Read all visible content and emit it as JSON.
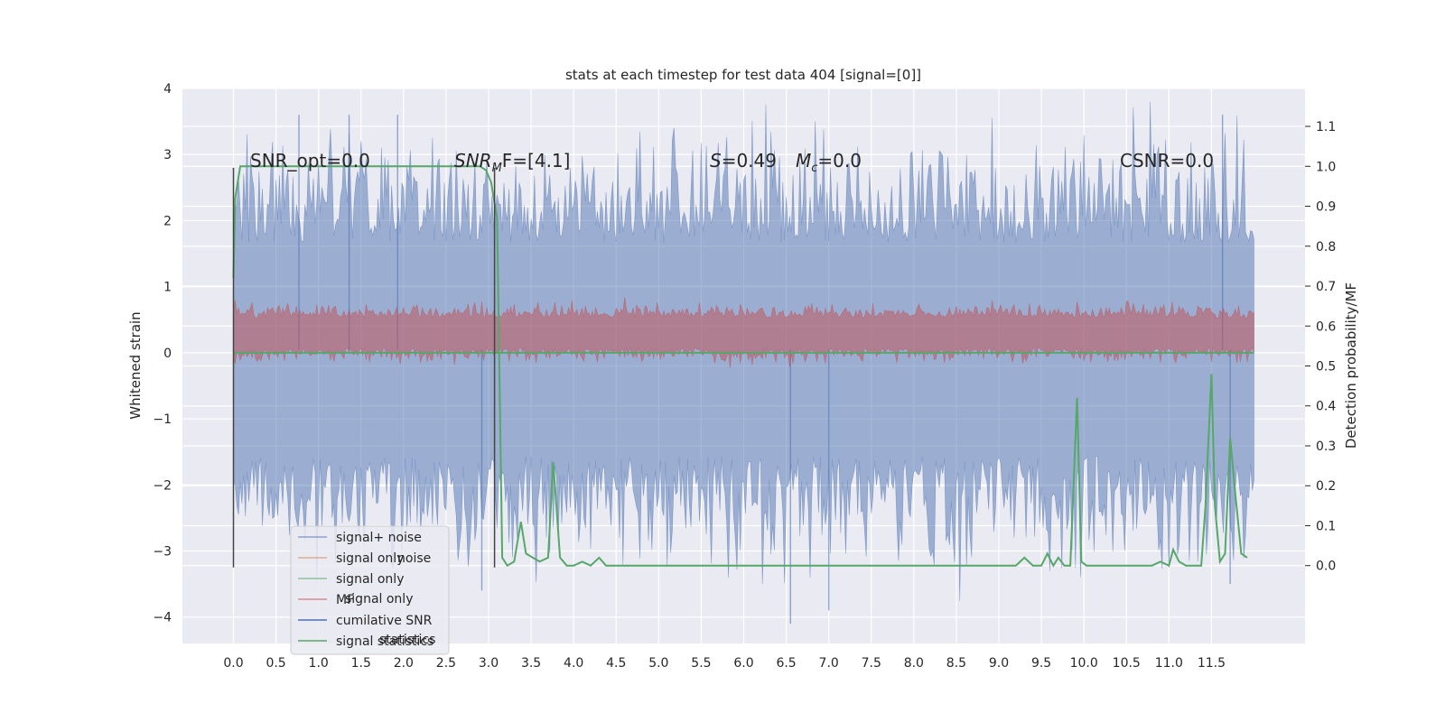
{
  "chart_data": {
    "type": "line",
    "title": "stats at each timestep for test data 404 [signal=[0]]",
    "xlabel": "",
    "ylabel_left": "Whitened strain",
    "ylabel_right": "Detection probability/MF",
    "xlim": [
      -0.6,
      12.6
    ],
    "ylim_left": [
      -4.4,
      4.0
    ],
    "ylim_right": [
      -0.195,
      1.195
    ],
    "x_ticks": [
      "0.0",
      "0.5",
      "1.0",
      "1.5",
      "2.0",
      "2.5",
      "3.0",
      "3.5",
      "4.0",
      "4.5",
      "5.0",
      "5.5",
      "6.0",
      "6.5",
      "7.0",
      "7.5",
      "8.0",
      "8.5",
      "9.0",
      "9.5",
      "10.0",
      "10.5",
      "11.0",
      "11.5"
    ],
    "y_ticks_left": [
      "4",
      "3",
      "2",
      "1",
      "0",
      "−1",
      "−2",
      "−3",
      "−4"
    ],
    "y_ticks_right": [
      "1.1",
      "1.0",
      "0.9",
      "0.8",
      "0.7",
      "0.6",
      "0.5",
      "0.4",
      "0.3",
      "0.2",
      "0.1",
      "0.0"
    ],
    "grid": true,
    "legend_position": "lower-left",
    "annotations": {
      "snr_opt": "SNR_opt=0.0",
      "snr_mf_var": "SNR",
      "snr_mf_sub": "M",
      "snr_mf_rest": "F=[4.1]",
      "s_var": "S",
      "s_rest": "=0.49",
      "mc_var": "M",
      "mc_sub": "c",
      "mc_rest": "=0.0",
      "csnr": "CSNR=0.0"
    },
    "legend": [
      {
        "label": "signal+ noise",
        "color": "#4c72b0",
        "alpha": 0.6
      },
      {
        "label": "signal only",
        "color": "#dd8452",
        "alpha": 0.6
      },
      {
        "label": "signal only",
        "color": "#55a868",
        "alpha": 0.6
      },
      {
        "label": "MF",
        "color": "#c44e52",
        "alpha": 0.6
      },
      {
        "label": "cumilative SNR",
        "color": "#4c72b0",
        "alpha": 1.0
      },
      {
        "label": "signal statistics",
        "color": "#55a868",
        "alpha": 1.0
      }
    ],
    "legend_ghost_text": [
      "noise",
      "signal only",
      "statistics"
    ],
    "series": [
      {
        "name": "signal+ noise",
        "axis": "left",
        "style": "noise-fill",
        "color": "#4c72b0",
        "x_range": [
          0.0,
          12.0
        ],
        "typical_range": [
          -2.1,
          2.2
        ],
        "extremes": [
          [
            0.77,
            3.6
          ],
          [
            1.36,
            3.6
          ],
          [
            1.93,
            3.6
          ],
          [
            2.92,
            -3.6
          ],
          [
            6.55,
            -4.1
          ],
          [
            7.0,
            -3.9
          ],
          [
            11.63,
            3.6
          ],
          [
            11.72,
            -3.5
          ]
        ]
      },
      {
        "name": "MF",
        "axis": "left",
        "style": "noise-fill",
        "color": "#c44e52",
        "x_range": [
          0.0,
          12.0
        ],
        "typical_range": [
          0.0,
          0.6
        ]
      },
      {
        "name": "signal only",
        "axis": "left",
        "style": "line",
        "color": "#55a868",
        "x": [
          0.0,
          12.0
        ],
        "y": [
          0.0,
          0.0
        ]
      },
      {
        "name": "signal statistics",
        "axis": "right",
        "style": "line",
        "color": "#55a868",
        "x": [
          0.0,
          0.02,
          0.08,
          0.15,
          0.3,
          1.0,
          2.0,
          2.9,
          2.97,
          3.03,
          3.1,
          3.16,
          3.22,
          3.3,
          3.38,
          3.44,
          3.52,
          3.6,
          3.7,
          3.76,
          3.84,
          3.92,
          4.0,
          4.1,
          4.2,
          4.3,
          4.38,
          5.0,
          6.0,
          7.0,
          8.0,
          9.0,
          9.2,
          9.3,
          9.4,
          9.5,
          9.57,
          9.64,
          9.7,
          9.77,
          9.84,
          9.92,
          9.97,
          10.03,
          10.1,
          10.5,
          10.8,
          10.9,
          11.0,
          11.05,
          11.12,
          11.2,
          11.3,
          11.38,
          11.43,
          11.5,
          11.54,
          11.6,
          11.66,
          11.72,
          11.78,
          11.85,
          11.92
        ],
        "y": [
          0.72,
          0.92,
          1.0,
          1.0,
          1.0,
          1.0,
          1.0,
          1.0,
          0.99,
          0.96,
          0.87,
          0.02,
          0.0,
          0.01,
          0.11,
          0.03,
          0.02,
          0.01,
          0.02,
          0.26,
          0.02,
          0.0,
          0.0,
          0.01,
          0.0,
          0.02,
          0.0,
          0.0,
          0.0,
          0.0,
          0.0,
          0.0,
          0.0,
          0.02,
          0.0,
          0.0,
          0.03,
          0.0,
          0.02,
          0.0,
          0.0,
          0.42,
          0.01,
          0.0,
          0.0,
          0.0,
          0.0,
          0.01,
          0.0,
          0.04,
          0.01,
          0.0,
          0.0,
          0.0,
          0.15,
          0.48,
          0.15,
          0.01,
          0.03,
          0.32,
          0.18,
          0.03,
          0.02
        ]
      }
    ],
    "vertical_markers": [
      {
        "x": 0.0,
        "y": [
          -3.25,
          2.8
        ],
        "color": "#444444"
      },
      {
        "x": 3.07,
        "y": [
          -3.25,
          2.8
        ],
        "color": "#444444"
      }
    ]
  }
}
